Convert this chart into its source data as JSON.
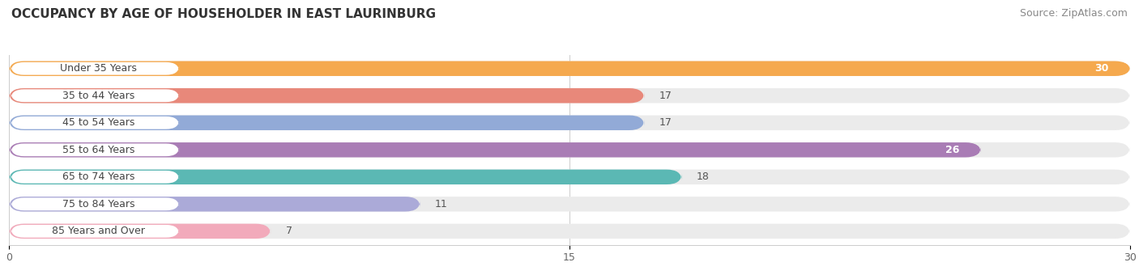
{
  "title": "OCCUPANCY BY AGE OF HOUSEHOLDER IN EAST LAURINBURG",
  "source": "Source: ZipAtlas.com",
  "categories": [
    "Under 35 Years",
    "35 to 44 Years",
    "45 to 54 Years",
    "55 to 64 Years",
    "65 to 74 Years",
    "75 to 84 Years",
    "85 Years and Over"
  ],
  "values": [
    30,
    17,
    17,
    26,
    18,
    11,
    7
  ],
  "bar_colors": [
    "#F5A94E",
    "#E8887A",
    "#92AAD7",
    "#A97CB5",
    "#5BB8B4",
    "#ABAAD8",
    "#F2AABB"
  ],
  "xlim": [
    0,
    30
  ],
  "xticks": [
    0,
    15,
    30
  ],
  "bar_background_color": "#ebebeb",
  "title_fontsize": 11,
  "source_fontsize": 9,
  "label_fontsize": 9,
  "value_fontsize": 9,
  "bar_height": 0.55,
  "label_text_color": "#444444",
  "value_color_inside": "#ffffff",
  "value_color_outside": "#555555",
  "value_inside_threshold": 22
}
